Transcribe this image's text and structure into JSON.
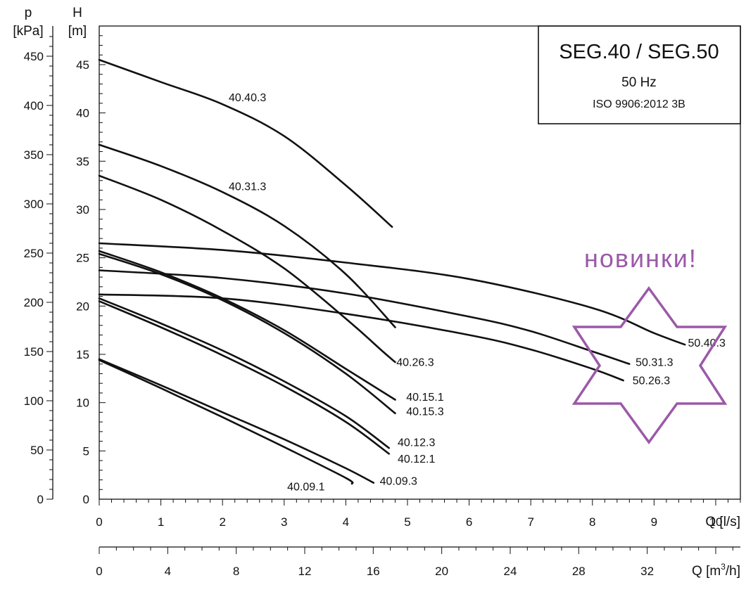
{
  "chart_data": {
    "type": "line",
    "title": "SEG.40 / SEG.50",
    "subtitle": "50 Hz",
    "standard": "ISO 9906:2012 3B",
    "annotation": "новинки!",
    "colors": {
      "curves": "#111111",
      "grid": "#111111",
      "accent": "#9b59a8"
    },
    "left_axis": {
      "symbol": "p",
      "unit": "[kPa]",
      "ticks": [
        "0",
        "50",
        "100",
        "150",
        "200",
        "250",
        "300",
        "350",
        "400",
        "450"
      ]
    },
    "y_axis": {
      "symbol": "H",
      "unit": "[m]",
      "ylim": [
        0,
        49
      ],
      "ticks": [
        "0",
        "5",
        "10",
        "15",
        "20",
        "25",
        "30",
        "35",
        "40",
        "45"
      ]
    },
    "x_axis": {
      "xlabel": "Q [l/s]",
      "xlim": [
        0,
        10.4
      ],
      "ticks": [
        "0",
        "1",
        "2",
        "3",
        "4",
        "5",
        "6",
        "7",
        "8",
        "9",
        "10"
      ]
    },
    "x2_axis": {
      "xlabel_prefix": "Q [m",
      "xlabel_sup": "3",
      "xlabel_suffix": "/h]",
      "ticks": [
        "0",
        "4",
        "8",
        "12",
        "16",
        "20",
        "24",
        "28",
        "32"
      ]
    },
    "series": [
      {
        "name": "40.40.3",
        "x": [
          0,
          1,
          2,
          3,
          4,
          4.75
        ],
        "y": [
          45.5,
          43.2,
          40.9,
          37.6,
          32.5,
          28.2
        ],
        "label_at": [
          2.1,
          41.2
        ]
      },
      {
        "name": "40.31.3",
        "x": [
          0,
          1,
          2,
          3,
          4,
          4.8
        ],
        "y": [
          36.7,
          34.5,
          31.8,
          28.3,
          23.3,
          17.8
        ],
        "label_at": [
          2.1,
          32.0
        ]
      },
      {
        "name": "40.26.3",
        "x": [
          0,
          1,
          2,
          3,
          4,
          4.6,
          4.8
        ],
        "y": [
          33.5,
          31.0,
          27.8,
          23.9,
          18.7,
          15.3,
          14.2
        ],
        "label_at": [
          4.82,
          13.8
        ]
      },
      {
        "name": "40.15.1",
        "x": [
          0,
          1,
          2,
          3,
          4,
          4.8
        ],
        "y": [
          25.7,
          23.5,
          20.8,
          17.5,
          13.5,
          10.3
        ],
        "label_at": [
          4.98,
          10.2
        ]
      },
      {
        "name": "40.15.3",
        "x": [
          0,
          1,
          2,
          3,
          4,
          4.8
        ],
        "y": [
          25.4,
          23.3,
          20.6,
          17.2,
          13.0,
          8.9
        ],
        "label_at": [
          4.98,
          8.7
        ]
      },
      {
        "name": "40.12.3",
        "x": [
          0,
          1,
          2,
          3,
          4,
          4.7
        ],
        "y": [
          20.8,
          18.2,
          15.4,
          12.2,
          8.6,
          5.3
        ],
        "label_at": [
          4.84,
          5.5
        ]
      },
      {
        "name": "40.12.1",
        "x": [
          0,
          1,
          2,
          3,
          4,
          4.7
        ],
        "y": [
          20.5,
          17.8,
          14.9,
          11.7,
          8.0,
          4.7
        ],
        "label_at": [
          4.84,
          3.8
        ]
      },
      {
        "name": "40.09.3",
        "x": [
          0,
          1,
          2,
          3,
          4,
          4.45
        ],
        "y": [
          14.5,
          11.8,
          9.0,
          6.2,
          3.2,
          1.7
        ],
        "label_at": [
          4.55,
          1.5
        ]
      },
      {
        "name": "40.09.1",
        "x": [
          0,
          1,
          2,
          3,
          4,
          4.1
        ],
        "y": [
          14.4,
          11.5,
          8.5,
          5.4,
          2.2,
          1.6
        ],
        "label_at": [
          3.05,
          0.9
        ]
      },
      {
        "name": "50.40.3",
        "x": [
          0,
          2,
          4,
          6,
          8,
          9,
          9.5
        ],
        "y": [
          26.5,
          25.8,
          24.5,
          22.8,
          19.8,
          17.2,
          16.0
        ],
        "label_at": [
          9.55,
          15.8
        ]
      },
      {
        "name": "50.31.3",
        "x": [
          0,
          2,
          4,
          6,
          7,
          8,
          8.6
        ],
        "y": [
          23.7,
          22.9,
          21.3,
          18.9,
          17.4,
          15.3,
          14.0
        ],
        "label_at": [
          8.7,
          13.8
        ]
      },
      {
        "name": "50.26.3",
        "x": [
          0,
          2,
          4,
          6,
          7,
          8,
          8.5
        ],
        "y": [
          21.2,
          20.8,
          19.2,
          17.0,
          15.5,
          13.5,
          12.3
        ],
        "label_at": [
          8.65,
          11.9
        ]
      }
    ]
  }
}
